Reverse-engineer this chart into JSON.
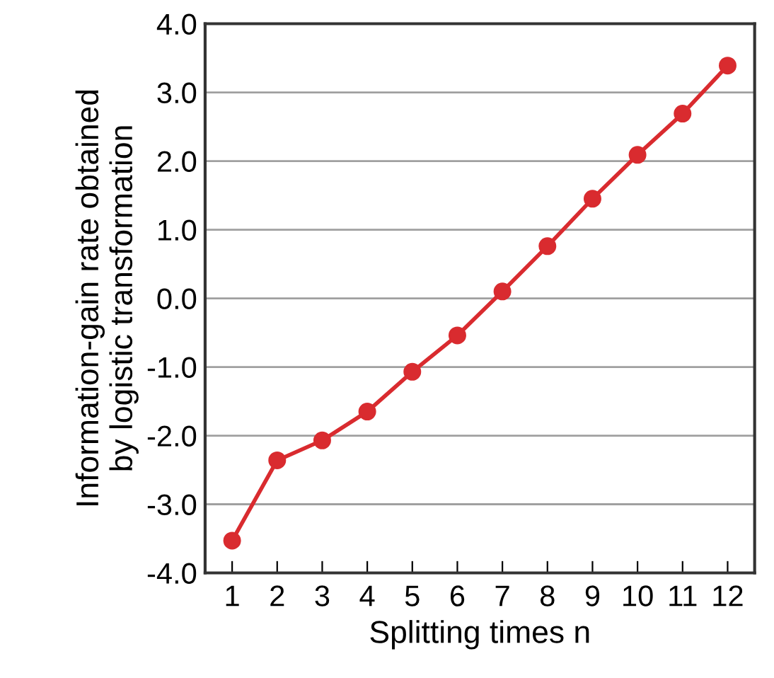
{
  "chart_data": {
    "type": "line",
    "xlabel": "Splitting times n",
    "ylabel": "Information-gain rate obtained\nby logistic transformation",
    "x": [
      1,
      2,
      3,
      4,
      5,
      6,
      7,
      8,
      9,
      10,
      11,
      12
    ],
    "series": [
      {
        "color": "#d92b2f",
        "values": [
          -3.53,
          -2.36,
          -2.07,
          -1.65,
          -1.07,
          -0.54,
          0.1,
          0.76,
          1.45,
          2.09,
          2.69,
          3.39
        ]
      }
    ],
    "xlim": [
      0.4,
      12.6
    ],
    "xticks": [
      1,
      2,
      3,
      4,
      5,
      6,
      7,
      8,
      9,
      10,
      11,
      12
    ],
    "ylim": [
      -4.0,
      4.0
    ],
    "yticks": [
      {
        "value": -4,
        "label": "-4.0"
      },
      {
        "value": -3,
        "label": "-3.0"
      },
      {
        "value": -2,
        "label": "-2.0"
      },
      {
        "value": -1,
        "label": "-1.0"
      },
      {
        "value": 0,
        "label": "0.0"
      },
      {
        "value": 1,
        "label": "1.0"
      },
      {
        "value": 2,
        "label": "2.0"
      },
      {
        "value": 3,
        "label": "3.0"
      },
      {
        "value": 4,
        "label": "4.0"
      }
    ],
    "grid": "y",
    "marker": "circle",
    "line_style": "solid"
  }
}
